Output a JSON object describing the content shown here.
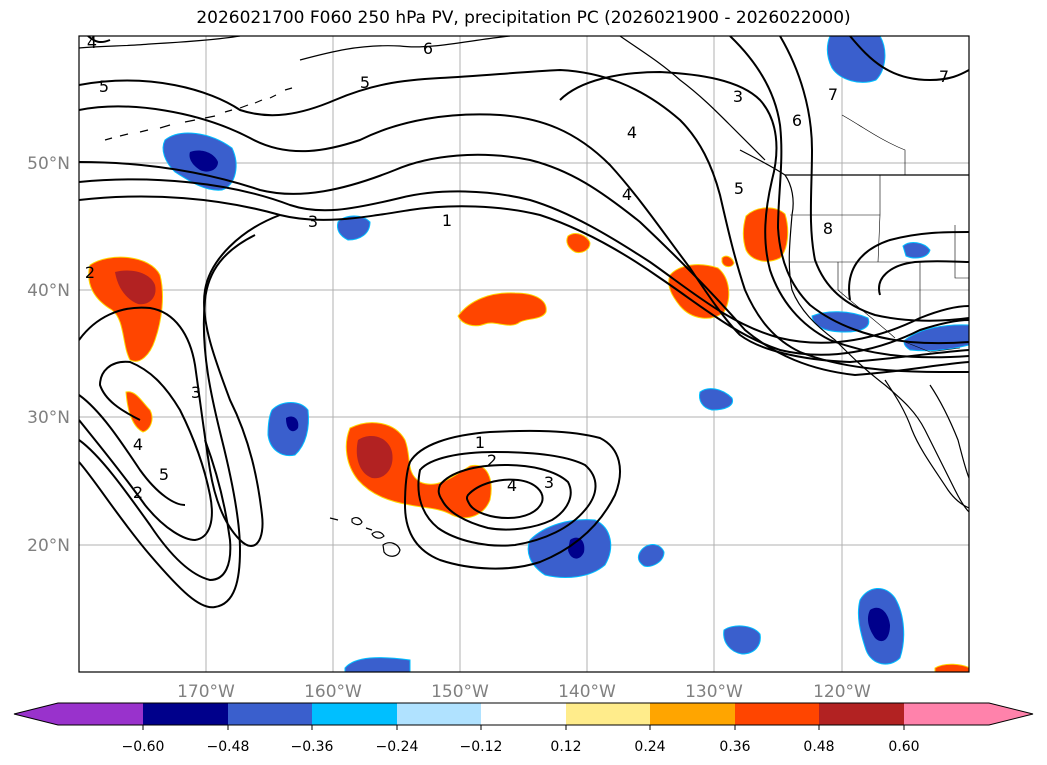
{
  "title": "2026021700 F060 250 hPa PV, precipitation PC (2026021900 - 2026022000)",
  "axes": {
    "lat_labels": [
      "50°N",
      "40°N",
      "30°N",
      "20°N"
    ],
    "lon_labels": [
      "170°W",
      "160°W",
      "150°W",
      "140°W",
      "130°W",
      "120°W"
    ]
  },
  "contour_labels": [
    "4",
    "5",
    "6",
    "5",
    "7",
    "3",
    "4",
    "3",
    "1",
    "4",
    "5",
    "6",
    "7",
    "8",
    "2",
    "3",
    "4",
    "5",
    "2",
    "1",
    "2",
    "4",
    "3"
  ],
  "colorbar": {
    "colors": [
      "#9932cc",
      "#00008b",
      "#3a5fcd",
      "#00bfff",
      "#b0e2ff",
      "#ffffff",
      "#ffec8b",
      "#ffa500",
      "#ff4500",
      "#b22222",
      "#ff82ab",
      "#ff82ab"
    ],
    "ticks": [
      "−0.60",
      "−0.48",
      "−0.36",
      "−0.24",
      "−0.12",
      "0.12",
      "0.24",
      "0.36",
      "0.48",
      "0.60"
    ]
  }
}
